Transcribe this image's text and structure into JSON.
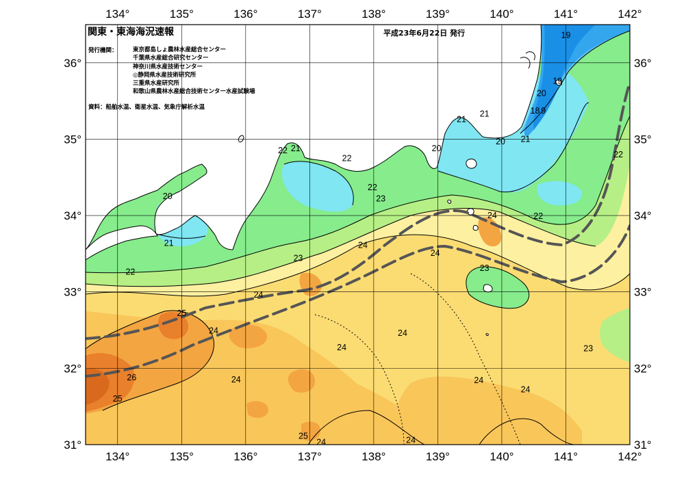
{
  "title": "関東・東海海況速報",
  "issue_date": "平成23年6月22日 発行",
  "issuer_heading": "発行機関：",
  "issuers": [
    "東京都島しょ農林水産総合センター",
    "千葉県水産総合研究センター",
    "神奈川県水産技術センター",
    "◎静岡県水産技術研究所",
    "三重県水産研究所",
    "和歌山県農林水産総合技術センター水産試験場"
  ],
  "source_note": "資料：船舶水温、衛星水温、気象庁解析水温",
  "axes": {
    "lon_ticks": [
      "134°",
      "135°",
      "136°",
      "137°",
      "138°",
      "139°",
      "140°",
      "141°",
      "142°"
    ],
    "lat_ticks": [
      "31°",
      "32°",
      "33°",
      "34°",
      "35°",
      "36°"
    ],
    "lon_range": [
      133.5,
      142.0
    ],
    "lat_range": [
      31.0,
      36.5
    ],
    "grid": true
  },
  "colors": {
    "c18": "#1a8fe6",
    "c19": "#33a6ee",
    "c20": "#5cc5f3",
    "c21": "#7fe6f2",
    "c22": "#86ec8c",
    "c23": "#b6ef86",
    "c23b": "#fdf0a0",
    "c24": "#fbdc73",
    "c24b": "#f9c65a",
    "c25": "#f3a541",
    "c26": "#e9802b",
    "c27": "#d96a1d",
    "land": "#ffffff",
    "kuroshio": "#555555"
  },
  "isotherm_labels": [
    {
      "text": "19",
      "lon": 141.0,
      "lat": 36.36
    },
    {
      "text": "19",
      "lon": 140.87,
      "lat": 35.76
    },
    {
      "text": "20",
      "lon": 140.62,
      "lat": 35.6
    },
    {
      "text": "18",
      "lon": 140.52,
      "lat": 35.37
    },
    {
      "text": "9",
      "lon": 140.65,
      "lat": 35.37
    },
    {
      "text": "21",
      "lon": 139.37,
      "lat": 35.26
    },
    {
      "text": "21",
      "lon": 139.73,
      "lat": 35.33
    },
    {
      "text": "20",
      "lon": 139.98,
      "lat": 34.97
    },
    {
      "text": "21",
      "lon": 140.37,
      "lat": 35.0
    },
    {
      "text": "20",
      "lon": 138.98,
      "lat": 34.88
    },
    {
      "text": "22",
      "lon": 136.58,
      "lat": 34.85
    },
    {
      "text": "21",
      "lon": 136.78,
      "lat": 34.88
    },
    {
      "text": "22",
      "lon": 137.58,
      "lat": 34.75
    },
    {
      "text": "20",
      "lon": 134.78,
      "lat": 34.25
    },
    {
      "text": "22",
      "lon": 141.82,
      "lat": 34.8
    },
    {
      "text": "22",
      "lon": 137.98,
      "lat": 34.37
    },
    {
      "text": "23",
      "lon": 138.11,
      "lat": 34.22
    },
    {
      "text": "24",
      "lon": 139.85,
      "lat": 34.0
    },
    {
      "text": "22",
      "lon": 140.57,
      "lat": 33.99
    },
    {
      "text": "21",
      "lon": 134.8,
      "lat": 33.64
    },
    {
      "text": "24",
      "lon": 137.83,
      "lat": 33.61
    },
    {
      "text": "24",
      "lon": 138.96,
      "lat": 33.51
    },
    {
      "text": "23",
      "lon": 136.82,
      "lat": 33.44
    },
    {
      "text": "23",
      "lon": 139.73,
      "lat": 33.31
    },
    {
      "text": "22",
      "lon": 134.2,
      "lat": 33.26
    },
    {
      "text": "24",
      "lon": 136.2,
      "lat": 32.96
    },
    {
      "text": "25",
      "lon": 135.0,
      "lat": 32.72
    },
    {
      "text": "24",
      "lon": 135.5,
      "lat": 32.49
    },
    {
      "text": "24",
      "lon": 138.45,
      "lat": 32.46
    },
    {
      "text": "24",
      "lon": 137.5,
      "lat": 32.27
    },
    {
      "text": "23",
      "lon": 141.35,
      "lat": 32.26
    },
    {
      "text": "26",
      "lon": 134.22,
      "lat": 31.88
    },
    {
      "text": "24",
      "lon": 135.85,
      "lat": 31.85
    },
    {
      "text": "24",
      "lon": 139.64,
      "lat": 31.84
    },
    {
      "text": "24",
      "lon": 140.37,
      "lat": 31.72
    },
    {
      "text": "25",
      "lon": 134.0,
      "lat": 31.6
    },
    {
      "text": "25",
      "lon": 136.9,
      "lat": 31.11
    },
    {
      "text": "24",
      "lon": 137.18,
      "lat": 31.03
    },
    {
      "text": "24",
      "lon": 138.58,
      "lat": 31.06
    }
  ]
}
